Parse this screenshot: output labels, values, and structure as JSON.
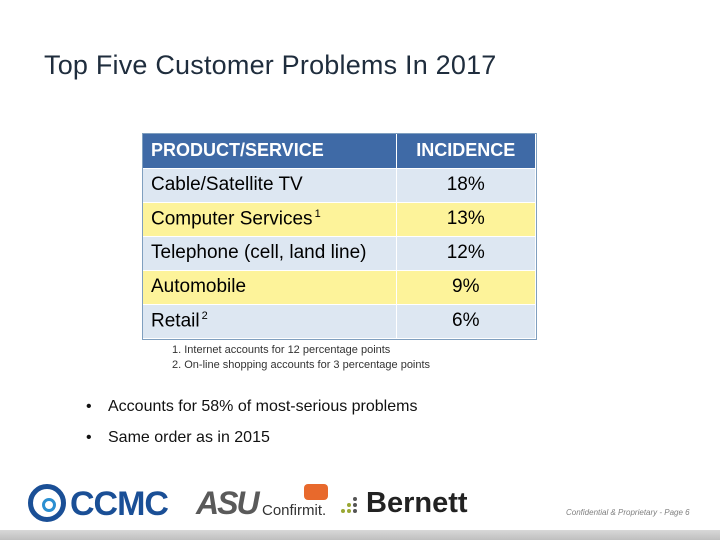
{
  "title": "Top Five Customer Problems In 2017",
  "table": {
    "headers": [
      "PRODUCT/SERVICE",
      "INCIDENCE"
    ],
    "rows": [
      {
        "product": "Cable/Satellite TV",
        "marker": "",
        "incidence": "18%"
      },
      {
        "product": "Computer Services",
        "marker": "1",
        "incidence": "13%"
      },
      {
        "product": "Telephone (cell, land line)",
        "marker": "",
        "incidence": "12%"
      },
      {
        "product": "Automobile",
        "marker": "",
        "incidence": "9%"
      },
      {
        "product": "Retail",
        "marker": "2",
        "incidence": "6%"
      }
    ]
  },
  "footnotes": [
    "1.  Internet accounts for 12 percentage points",
    "2.  On-line shopping accounts for 3 percentage points"
  ],
  "bullets": [
    "Accounts for 58% of most-serious problems",
    "Same order as in 2015"
  ],
  "logos": {
    "ccmc": "CCMC",
    "asu": "ASU",
    "confirmit": "Confirmit.",
    "bernett": "Bernett"
  },
  "footer": "Confidential & Proprietary - Page 6",
  "colors": {
    "header_bg": "#3f6aa6",
    "band_blue": "#dde7f2",
    "band_yellow": "#fdf39a"
  }
}
